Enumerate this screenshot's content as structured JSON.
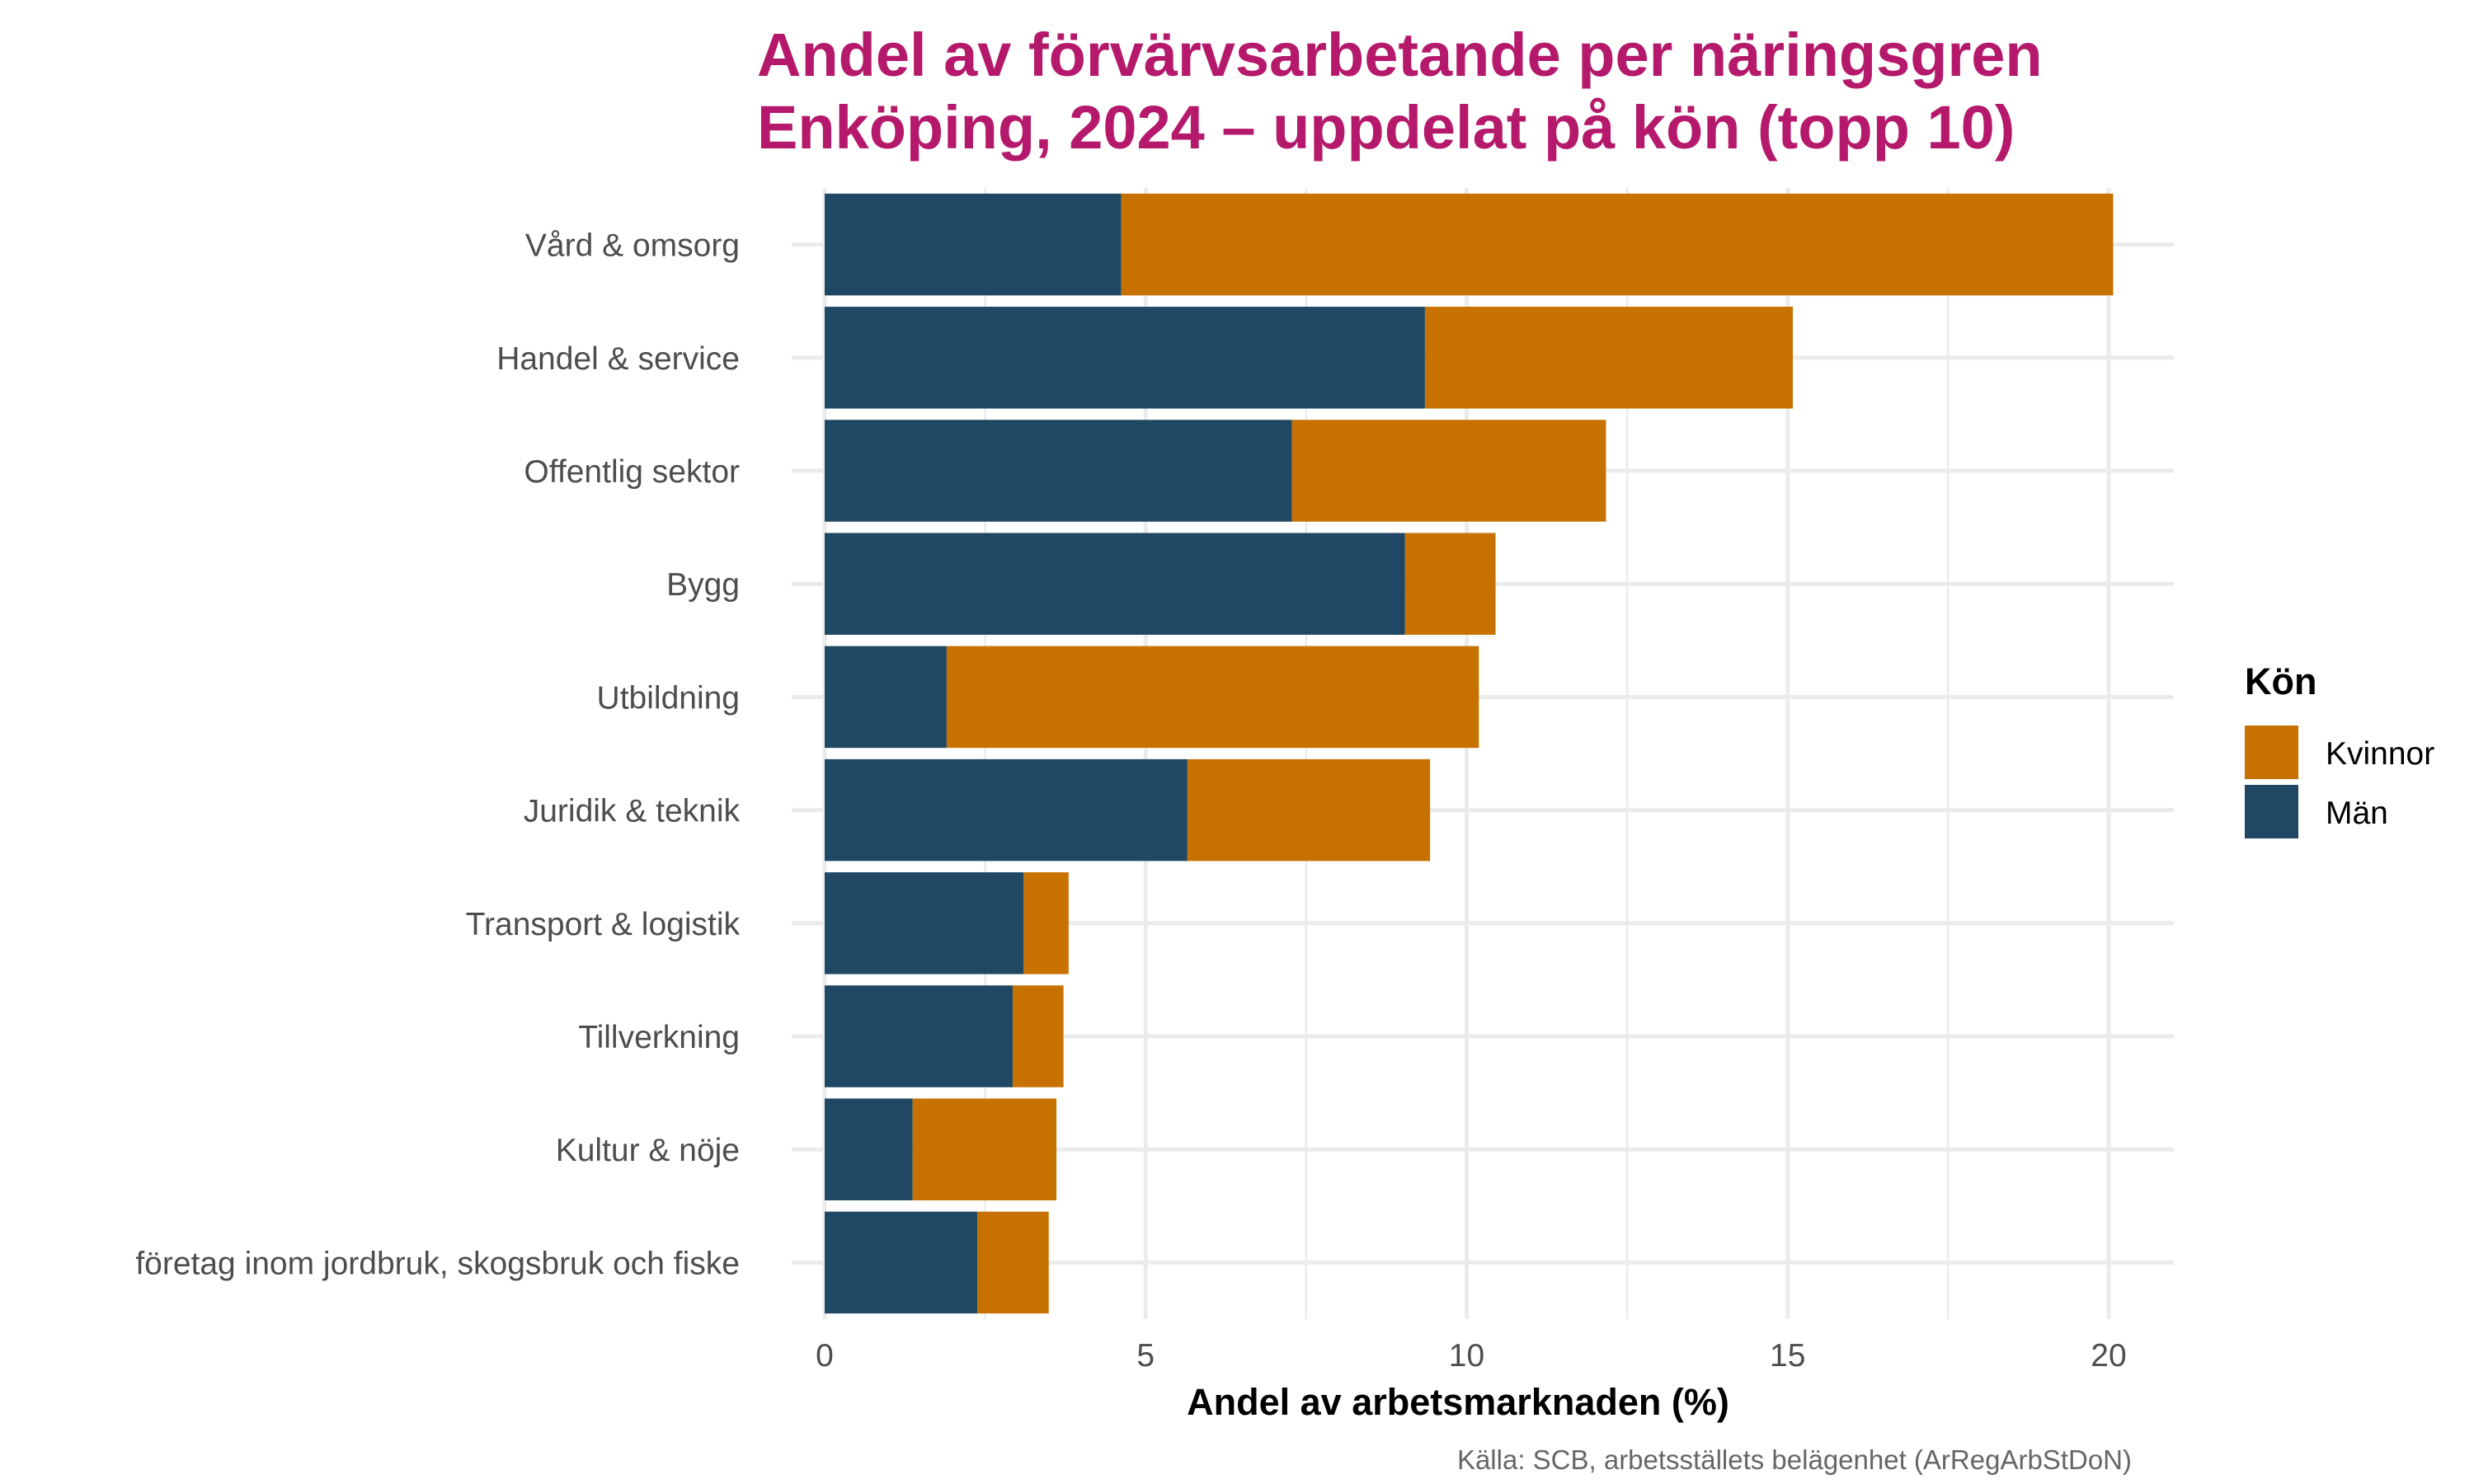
{
  "chart_data": {
    "type": "bar",
    "orientation": "horizontal",
    "stacked": true,
    "title": [
      "Andel av förvärvsarbetande per näringsgren",
      "Enköping, 2024 – uppdelat på kön (topp 10)"
    ],
    "xlabel": "Andel av arbetsmarknaden (%)",
    "ylabel": "",
    "caption": "Källa: SCB, arbetsställets belägenhet (ArRegArbStDoN)",
    "xlim": [
      0,
      21
    ],
    "x_ticks": [
      0,
      5,
      10,
      15,
      20
    ],
    "x_tick_labels": [
      "0",
      "5",
      "10",
      "15",
      "20"
    ],
    "grid": true,
    "legend": {
      "title": "Kön",
      "placement": "right",
      "entries": [
        "Kvinnor",
        "Män"
      ]
    },
    "categories": [
      "Vård & omsorg",
      "Handel & service",
      "Offentlig sektor",
      "Bygg",
      "Utbildning",
      "Juridik & teknik",
      "Transport & logistik",
      "Tillverkning",
      "Kultur & nöje",
      "företag inom jordbruk, skogsbruk och fiske"
    ],
    "series": [
      {
        "name": "Män",
        "color": "#204864",
        "values": [
          4.62,
          9.35,
          7.28,
          9.04,
          1.9,
          5.65,
          3.1,
          2.93,
          1.37,
          2.38
        ]
      },
      {
        "name": "Kvinnor",
        "color": "#c77100",
        "values": [
          15.45,
          5.73,
          4.89,
          1.41,
          8.29,
          3.78,
          0.7,
          0.79,
          2.24,
          1.11
        ]
      }
    ]
  },
  "colors": {
    "title": "#b5196b",
    "kvinnor": "#c77100",
    "man": "#204864"
  }
}
